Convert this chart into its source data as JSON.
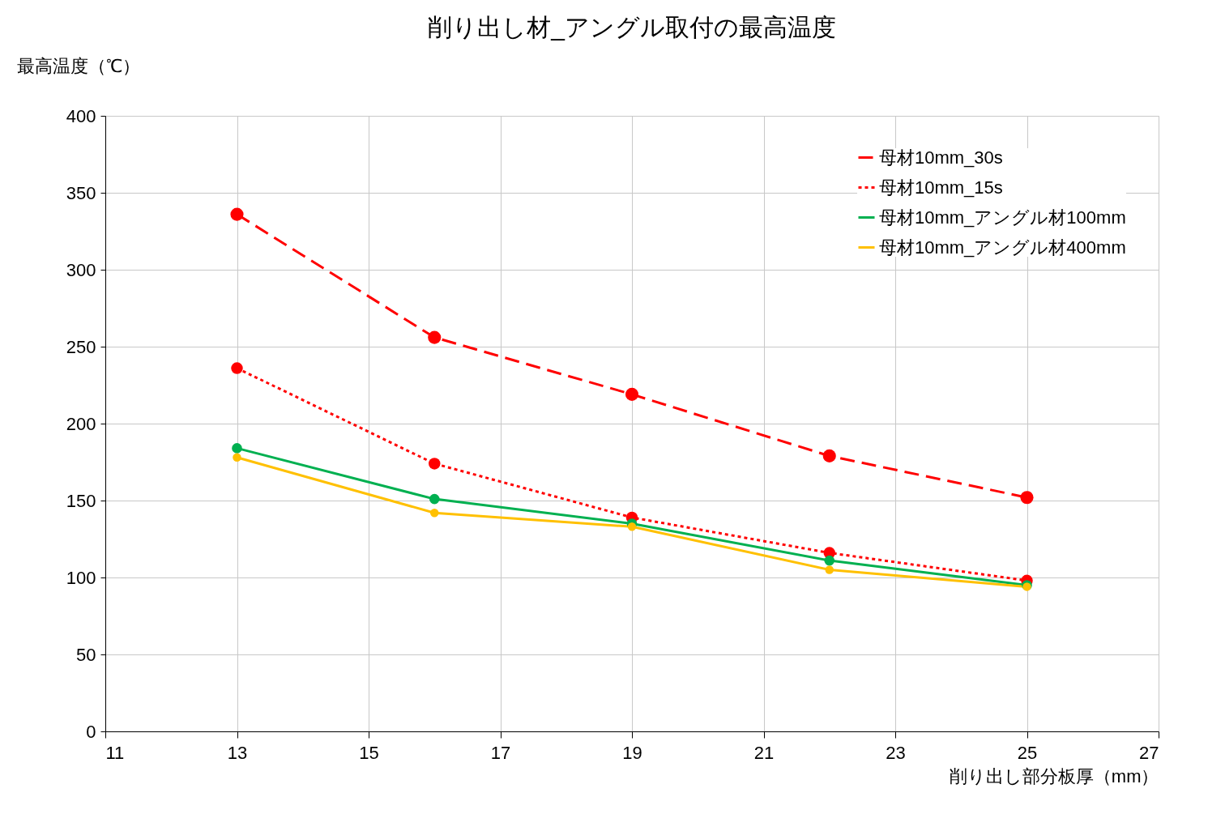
{
  "chart_data": {
    "type": "line",
    "title": "削り出し材_アングル取付の最高温度",
    "xlabel": "削り出し部分板厚（mm）",
    "ylabel": "最高温度（℃）",
    "x": [
      13,
      16,
      19,
      22,
      25
    ],
    "series": [
      {
        "name": "母材10mm_30s",
        "color": "#ff0000",
        "line_style": "dashed",
        "values": [
          336,
          256,
          219,
          179,
          152
        ]
      },
      {
        "name": "母材10mm_15s",
        "color": "#ff0000",
        "line_style": "dotted",
        "values": [
          236,
          174,
          139,
          116,
          98
        ]
      },
      {
        "name": "母材10mm_アングル材100mm",
        "color": "#00b050",
        "line_style": "solid",
        "values": [
          184,
          151,
          135,
          111,
          95
        ]
      },
      {
        "name": "母材10mm_アングル材400mm",
        "color": "#ffc000",
        "line_style": "solid",
        "values": [
          178,
          142,
          133,
          105,
          94
        ]
      }
    ],
    "xlim": [
      11,
      27
    ],
    "xticks": [
      11,
      13,
      15,
      17,
      19,
      21,
      23,
      25,
      27
    ],
    "ylim": [
      0,
      400
    ],
    "yticks": [
      0,
      50,
      100,
      150,
      200,
      250,
      300,
      350,
      400
    ],
    "grid": true,
    "legend": "top right",
    "marker": "circle"
  }
}
